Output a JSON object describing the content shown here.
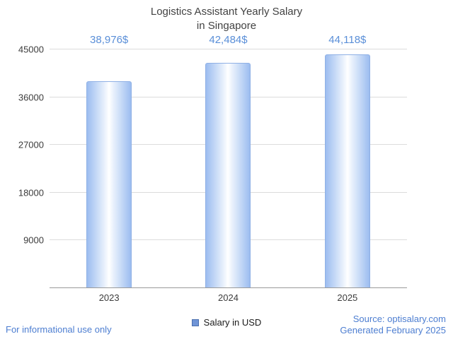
{
  "header": {
    "line1": "Logistics Assistant Yearly Salary",
    "line2": "in Singapore"
  },
  "chart_data": {
    "type": "bar",
    "title": "Logistics Assistant Yearly Salary in Singapore",
    "categories": [
      "2023",
      "2024",
      "2025"
    ],
    "values": [
      38976,
      42484,
      44118
    ],
    "value_labels": [
      "38,976$",
      "42,484$",
      "44,118$"
    ],
    "xlabel": "",
    "ylabel": "",
    "ylim": [
      0,
      45000
    ],
    "yticks": [
      9000,
      18000,
      27000,
      36000,
      45000
    ],
    "grid": "horizontal",
    "legend": {
      "label": "Salary in USD",
      "position": "bottom"
    }
  },
  "footer": {
    "left_note": "For informational use only",
    "source": "Source: optisalary.com",
    "generated": "Generated February 2025"
  },
  "colors": {
    "bar_edge": "#9cbdf0",
    "bar_center": "#ffffff",
    "bar_border": "#8fb0e5",
    "value_label_text": "#5a8fd8",
    "axis_text": "#3c3c3c",
    "gridline": "#dcdcdc",
    "axis_line": "#9a9a9a",
    "link_text": "#4d7ed1",
    "legend_marker": "#6f94d6"
  }
}
